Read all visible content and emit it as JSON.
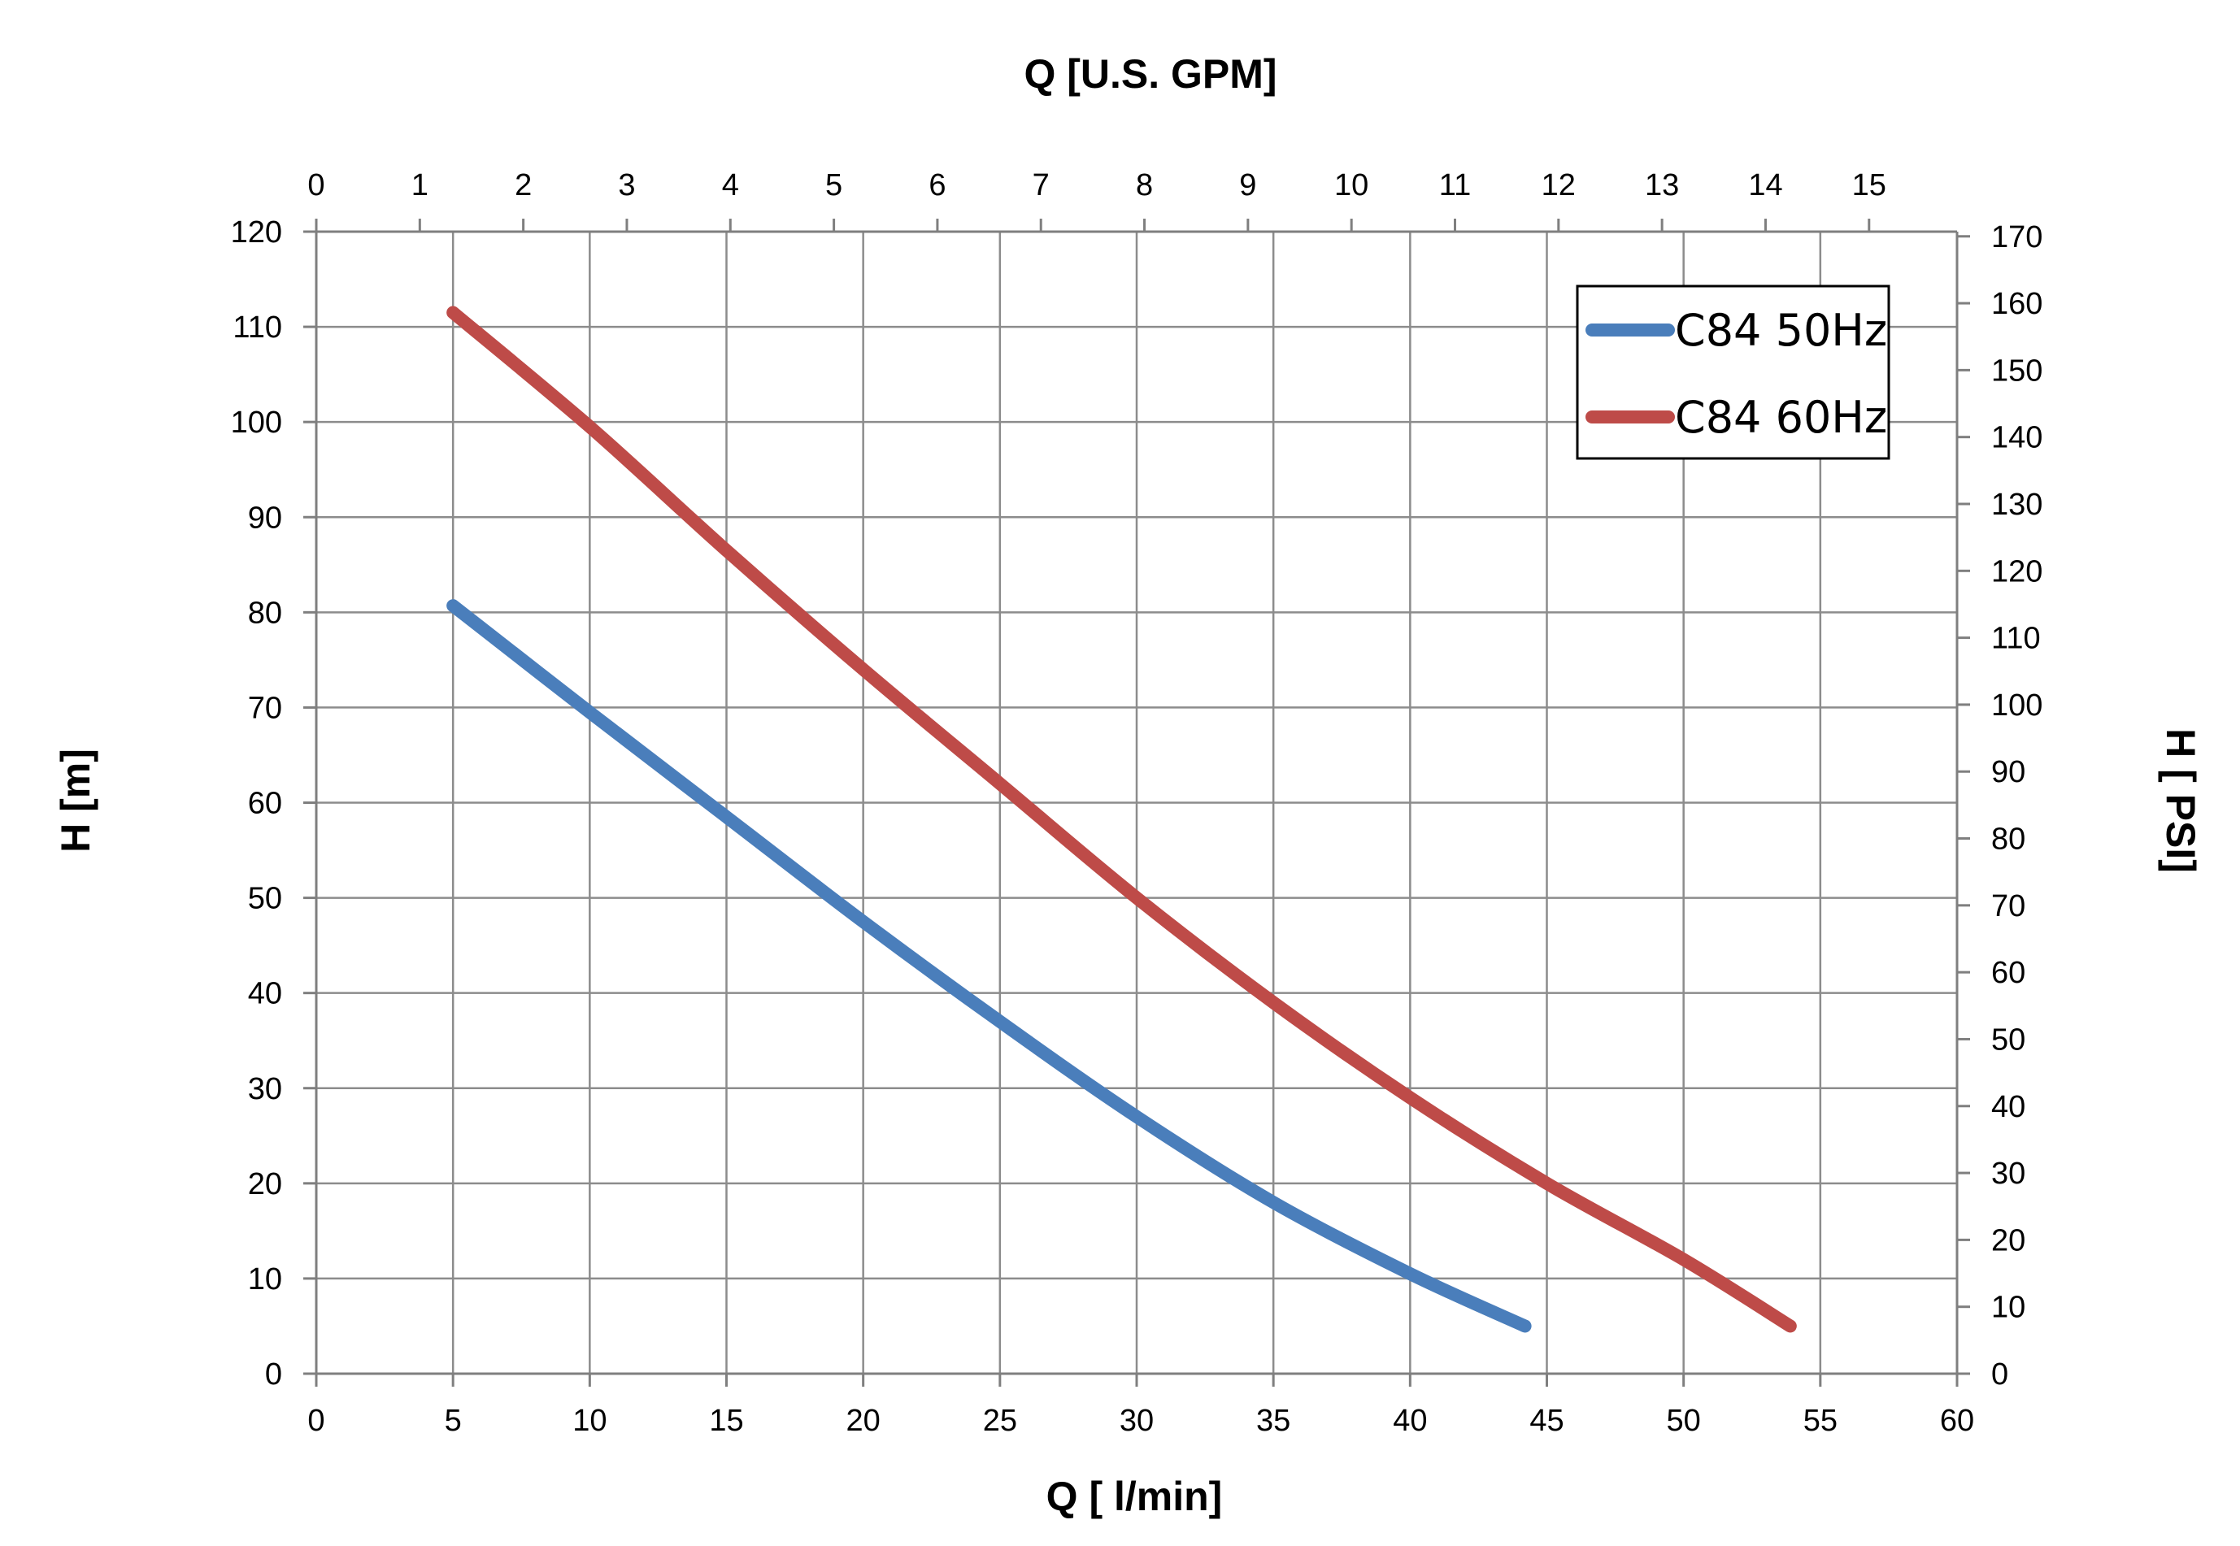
{
  "chart_data": {
    "type": "line",
    "x_bottom_label": "Q [ l/min]",
    "x_top_label": "Q  [U.S. GPM]",
    "y_left_label": "H [m]",
    "y_right_label": "H [ PSI]",
    "xlim": [
      0,
      60
    ],
    "ylim": [
      0,
      120
    ],
    "x_top_lim": [
      0,
      15.85
    ],
    "y_right_lim": [
      0,
      170.7
    ],
    "x_ticks": [
      0,
      5,
      10,
      15,
      20,
      25,
      30,
      35,
      40,
      45,
      50,
      55,
      60
    ],
    "y_ticks": [
      0,
      10,
      20,
      30,
      40,
      50,
      60,
      70,
      80,
      90,
      100,
      110,
      120
    ],
    "x_top_ticks": [
      0,
      1,
      2,
      3,
      4,
      5,
      6,
      7,
      8,
      9,
      10,
      11,
      12,
      13,
      14,
      15
    ],
    "y_right_ticks": [
      0,
      10,
      20,
      30,
      40,
      50,
      60,
      70,
      80,
      90,
      100,
      110,
      120,
      130,
      140,
      150,
      160,
      170
    ],
    "grid": true,
    "legend_position": "top-right",
    "series": [
      {
        "name": "C84 50Hz",
        "color": "#4a7ebb",
        "x": [
          5,
          10,
          15,
          20,
          25,
          30,
          35,
          40,
          44.2
        ],
        "y": [
          80.7,
          69.5,
          58.5,
          47.5,
          37,
          27,
          18,
          10.5,
          5
        ]
      },
      {
        "name": "C84 60Hz",
        "color": "#be4b48",
        "x": [
          5,
          10,
          15,
          20,
          25,
          30,
          35,
          40,
          45,
          50,
          53.9
        ],
        "y": [
          111.5,
          99.5,
          86.5,
          74,
          62,
          50,
          39,
          29,
          20,
          12,
          5
        ]
      }
    ]
  }
}
